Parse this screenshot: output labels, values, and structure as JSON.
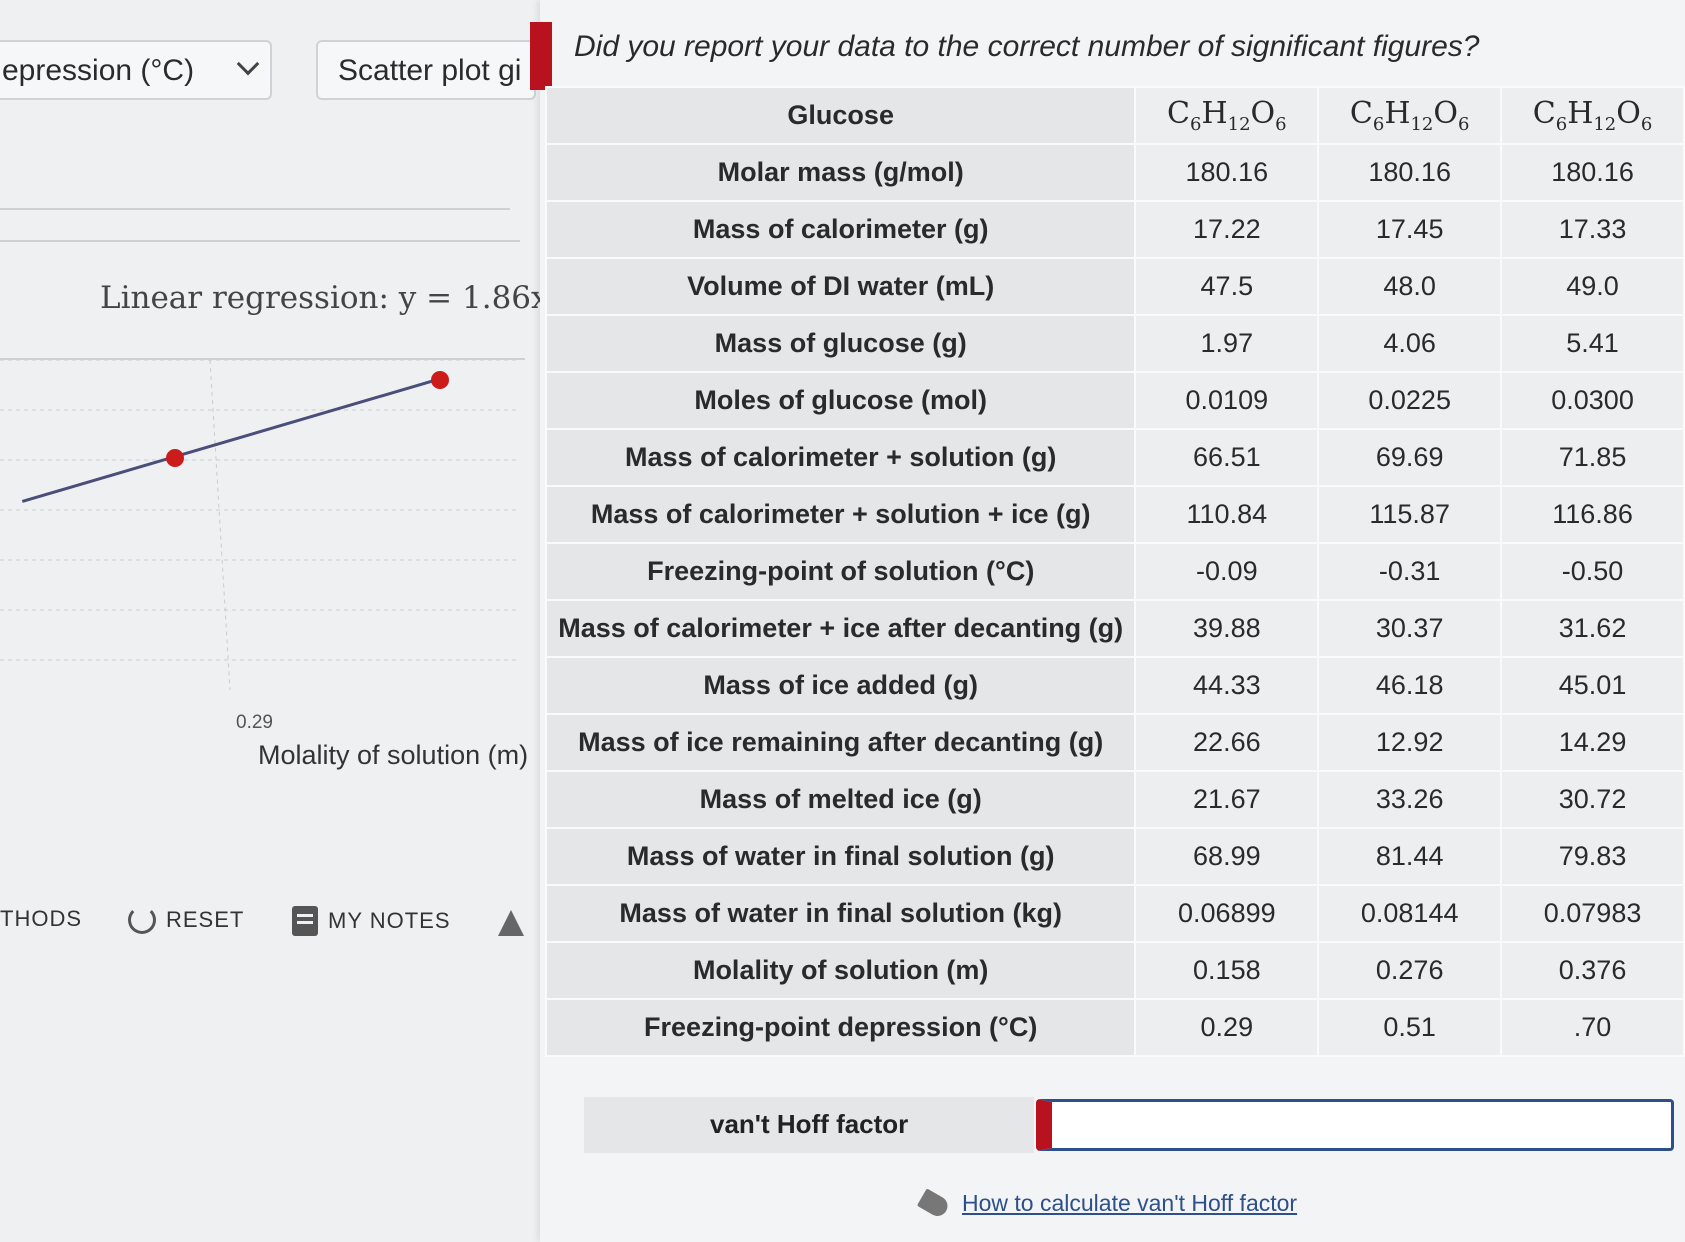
{
  "left": {
    "dropdown_label": "epression (°C)",
    "scatter_button": "Scatter plot gi",
    "regression": "Linear regression: y = 1.86x",
    "x_tick": "0.29",
    "x_axis_label": "Molality of solution (m)",
    "toolbar": {
      "methods": "THODS",
      "reset": "RESET",
      "notes": "MY NOTES"
    }
  },
  "chart_data": {
    "type": "scatter",
    "xlabel": "Molality of solution (m)",
    "x_tick_labels": [
      "0.29"
    ],
    "points": [
      {
        "x": 0.158,
        "y": 0.29
      },
      {
        "x": 0.276,
        "y": 0.51
      }
    ],
    "fit": {
      "slope": 1.86,
      "label": "Linear regression: y = 1.86x"
    },
    "series_color": "#cc1b1b",
    "line_color": "#4a4f7a",
    "grid": true
  },
  "question": "Did you report your data to the correct number of significant figures?",
  "table": {
    "header_label": "Glucose",
    "formula_prefix": "C",
    "formula_parts": [
      "C",
      "6",
      "H",
      "12",
      "O",
      "6"
    ],
    "rows": [
      {
        "label": "Molar mass (g/mol)",
        "values": [
          "180.16",
          "180.16",
          "180.16"
        ]
      },
      {
        "label": "Mass of calorimeter (g)",
        "values": [
          "17.22",
          "17.45",
          "17.33"
        ]
      },
      {
        "label": "Volume of DI water (mL)",
        "values": [
          "47.5",
          "48.0",
          "49.0"
        ]
      },
      {
        "label": "Mass of glucose (g)",
        "values": [
          "1.97",
          "4.06",
          "5.41"
        ]
      },
      {
        "label": "Moles of glucose (mol)",
        "values": [
          "0.0109",
          "0.0225",
          "0.0300"
        ]
      },
      {
        "label": "Mass of calorimeter + solution (g)",
        "values": [
          "66.51",
          "69.69",
          "71.85"
        ]
      },
      {
        "label": "Mass of calorimeter + solution + ice (g)",
        "values": [
          "110.84",
          "115.87",
          "116.86"
        ]
      },
      {
        "label": "Freezing-point of solution (°C)",
        "values": [
          "-0.09",
          "-0.31",
          "-0.50"
        ]
      },
      {
        "label": "Mass of calorimeter + ice after decanting (g)",
        "values": [
          "39.88",
          "30.37",
          "31.62"
        ]
      },
      {
        "label": "Mass of ice added (g)",
        "values": [
          "44.33",
          "46.18",
          "45.01"
        ]
      },
      {
        "label": "Mass of ice remaining after decanting (g)",
        "values": [
          "22.66",
          "12.92",
          "14.29"
        ]
      },
      {
        "label": "Mass of melted ice (g)",
        "values": [
          "21.67",
          "33.26",
          "30.72"
        ]
      },
      {
        "label": "Mass of water in final solution (g)",
        "values": [
          "68.99",
          "81.44",
          "79.83"
        ]
      },
      {
        "label": "Mass of water in final solution (kg)",
        "values": [
          "0.06899",
          "0.08144",
          "0.07983"
        ]
      },
      {
        "label": "Molality of solution (m)",
        "values": [
          "0.158",
          "0.276",
          "0.376"
        ]
      },
      {
        "label": "Freezing-point depression (°C)",
        "values": [
          "0.29",
          "0.51",
          ".70"
        ]
      }
    ]
  },
  "vant_hoff": {
    "label": "van't Hoff factor",
    "value": ""
  },
  "help_link": "How to calculate van't Hoff factor"
}
